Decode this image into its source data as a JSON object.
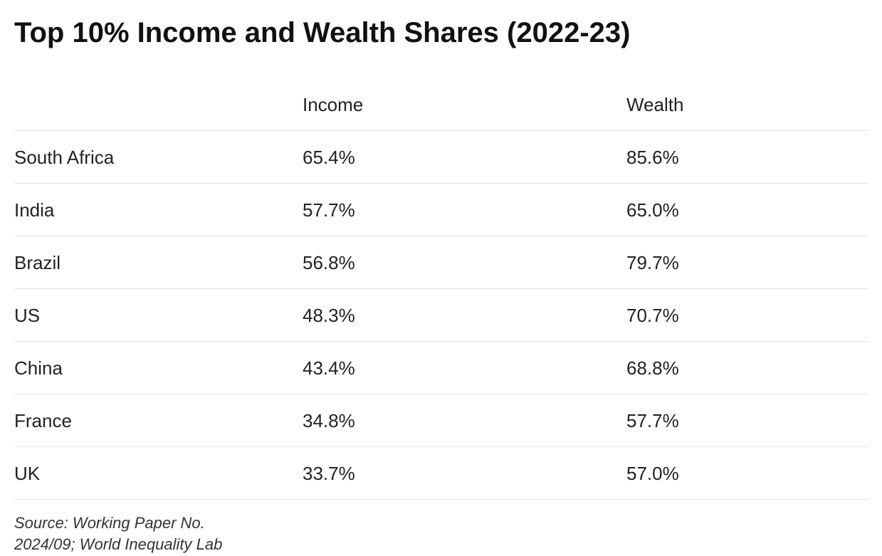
{
  "chart_data": {
    "type": "table",
    "title": "Top 10% Income and Wealth Shares (2022-23)",
    "columns": [
      "",
      "Income",
      "Wealth"
    ],
    "rows": [
      {
        "country": "South Africa",
        "income": "65.4%",
        "wealth": "85.6%"
      },
      {
        "country": "India",
        "income": "57.7%",
        "wealth": "65.0%"
      },
      {
        "country": "Brazil",
        "income": "56.8%",
        "wealth": "79.7%"
      },
      {
        "country": "US",
        "income": "48.3%",
        "wealth": "70.7%"
      },
      {
        "country": "China",
        "income": "43.4%",
        "wealth": "68.8%"
      },
      {
        "country": "France",
        "income": "34.8%",
        "wealth": "57.7%"
      },
      {
        "country": "UK",
        "income": "33.7%",
        "wealth": "57.0%"
      }
    ],
    "source": "Source: Working Paper No. 2024/09; World Inequality Lab"
  }
}
